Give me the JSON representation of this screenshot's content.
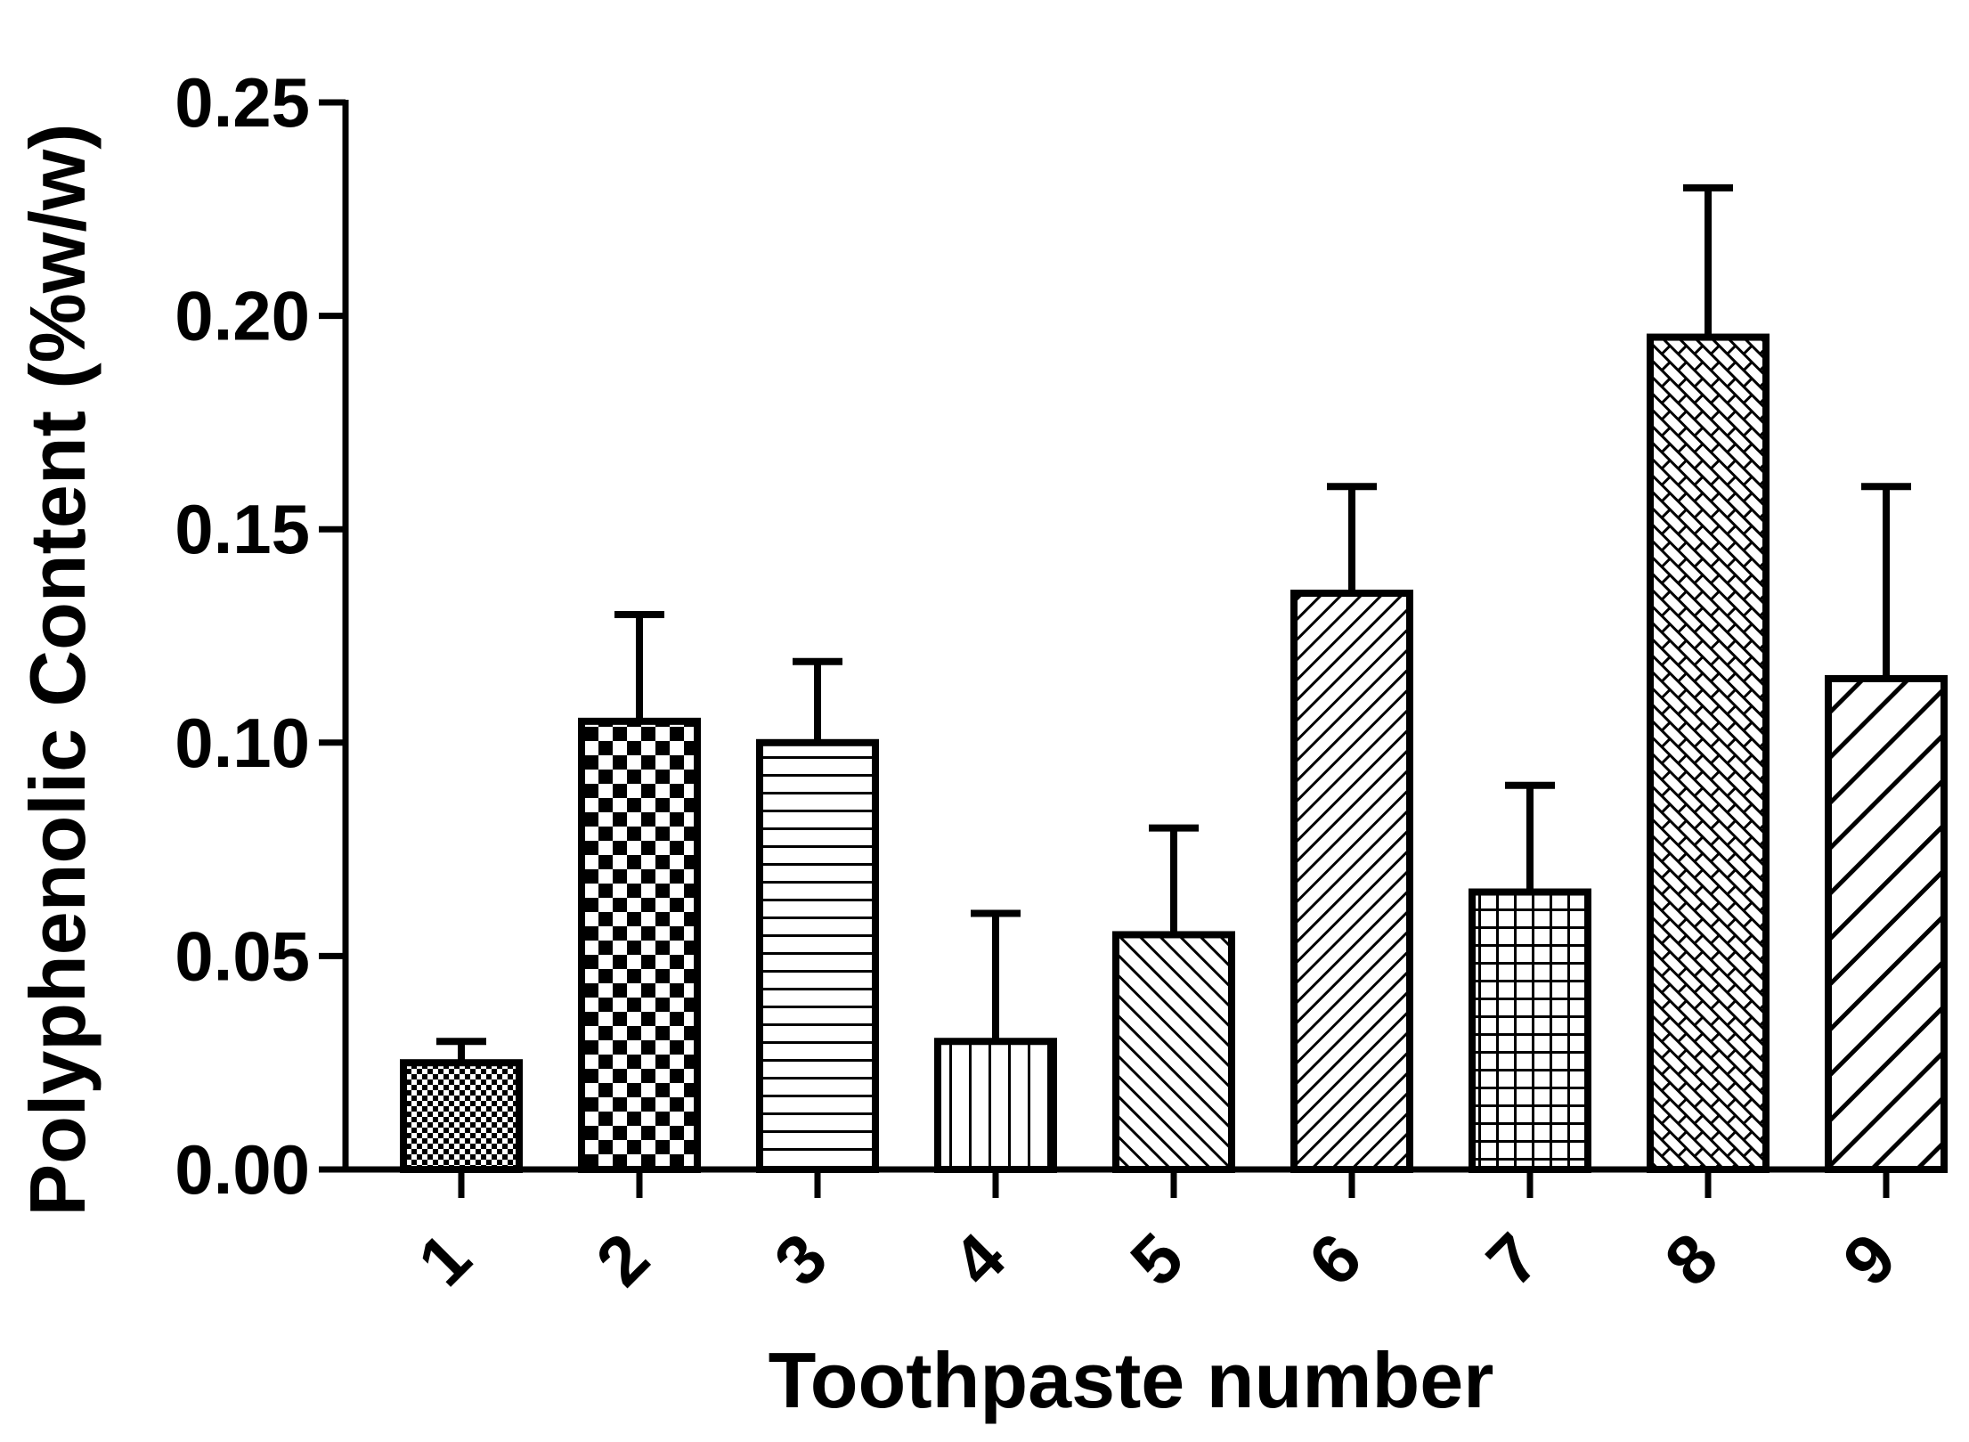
{
  "chart_data": {
    "type": "bar",
    "xlabel": "Toothpaste number",
    "ylabel": "Polyphenolic Content (%w/w)",
    "ylim": [
      0,
      0.25
    ],
    "yticks": [
      "0.00",
      "0.05",
      "0.10",
      "0.15",
      "0.20",
      "0.25"
    ],
    "categories": [
      "1",
      "2",
      "3",
      "4",
      "5",
      "6",
      "7",
      "8",
      "9"
    ],
    "values": [
      0.025,
      0.105,
      0.1,
      0.03,
      0.055,
      0.135,
      0.065,
      0.195,
      0.115
    ],
    "error_upper": [
      0.03,
      0.13,
      0.119,
      0.06,
      0.08,
      0.16,
      0.09,
      0.23,
      0.16
    ],
    "patterns": [
      "fine-checker",
      "checker",
      "horizontal-lines",
      "vertical-lines",
      "diagonal-fine-ne",
      "diagonal-fine-nw",
      "grid",
      "weave",
      "diagonal-wide-nw"
    ],
    "grid": false,
    "colors": {
      "ink": "#000000",
      "background": "#ffffff"
    }
  }
}
